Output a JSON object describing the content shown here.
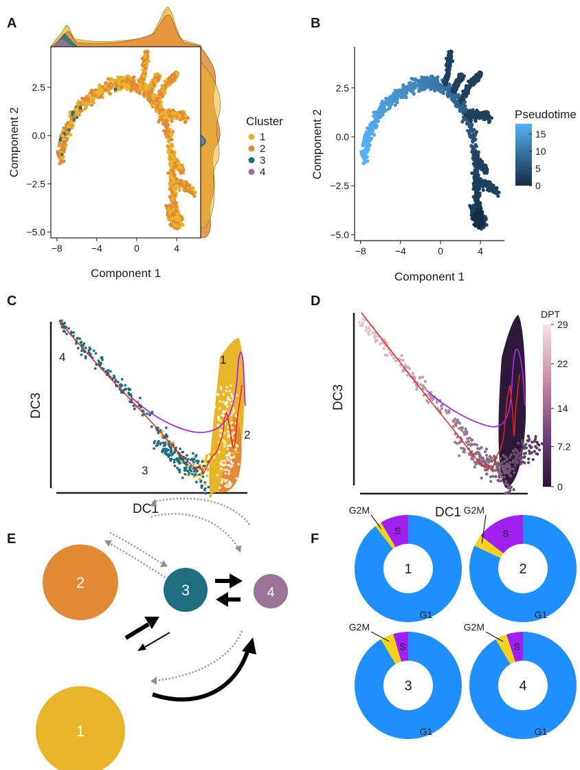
{
  "panels": {
    "A": "A",
    "B": "B",
    "C": "C",
    "D": "D",
    "E": "E",
    "F": "F"
  },
  "colors": {
    "c1": "#E8B52A",
    "c2": "#E38A37",
    "c3": "#1E6E80",
    "c4": "#9B7495",
    "red": "#E8231E",
    "purple": "#A42BE0",
    "g1": "#1F8FFF",
    "s": "#A020F0",
    "g2m": "#F5D31C"
  },
  "chart_data": [
    {
      "panel": "A",
      "type": "scatter",
      "xlabel": "Component 1",
      "ylabel": "Component 2",
      "xticks": [
        -8,
        -4,
        0,
        4
      ],
      "yticks": [
        2.5,
        0.0,
        -2.5,
        -5.0
      ],
      "xtick_labels": [
        "−8",
        "−4",
        "0",
        "4"
      ],
      "ytick_labels": [
        "2.5",
        "0.0",
        "−2.5",
        "−5.0"
      ],
      "xlim": [
        -8.6,
        6.4
      ],
      "ylim": [
        -5.3,
        4.6
      ],
      "legend_title": "Cluster",
      "legend_items": [
        "1",
        "2",
        "3",
        "4"
      ],
      "legend": "right",
      "marginal_density": "top and right"
    },
    {
      "panel": "B",
      "type": "scatter",
      "xlabel": "Component 1",
      "ylabel": "Component 2",
      "xticks": [
        -8,
        -4,
        0,
        4
      ],
      "yticks": [
        2.5,
        0.0,
        -2.5,
        -5.0
      ],
      "xtick_labels": [
        "−8",
        "−4",
        "0",
        "4"
      ],
      "ytick_labels": [
        "2.5",
        "0.0",
        "−2.5",
        "−5.0"
      ],
      "xlim": [
        -8.6,
        6.4
      ],
      "ylim": [
        -5.3,
        4.6
      ],
      "colorbar_title": "Pseudotime",
      "colorbar_ticks": [
        "15",
        "10",
        "5",
        "0"
      ],
      "colorbar_values": [
        15,
        10,
        5,
        0
      ],
      "colorbar_range": [
        0,
        18
      ]
    },
    {
      "panel": "C",
      "type": "scatter",
      "xlabel": "DC1",
      "ylabel": "DC3",
      "cluster_labels": [
        "4",
        "1",
        "3",
        "2"
      ]
    },
    {
      "panel": "D",
      "type": "scatter",
      "xlabel": "DC1",
      "ylabel": "DC3",
      "colorbar_title": "DPT",
      "colorbar_ticks": [
        "29",
        "22",
        "14",
        "7.2",
        "0"
      ],
      "colorbar_values": [
        29,
        22,
        14,
        7.2,
        0
      ],
      "colorbar_range": [
        0,
        29
      ]
    },
    {
      "panel": "E",
      "type": "network",
      "nodes": [
        {
          "id": "1",
          "label": "1",
          "size": "largest"
        },
        {
          "id": "2",
          "label": "2",
          "size": "large"
        },
        {
          "id": "3",
          "label": "3",
          "size": "medium"
        },
        {
          "id": "4",
          "label": "4",
          "size": "small"
        }
      ],
      "edges": [
        {
          "from": "1",
          "to": "2",
          "style": "solid-thick"
        },
        {
          "from": "2",
          "to": "1",
          "style": "solid-thick"
        },
        {
          "from": "1",
          "to": "3",
          "style": "solid-thick"
        },
        {
          "from": "3",
          "to": "1",
          "style": "solid-thin"
        },
        {
          "from": "3",
          "to": "4",
          "style": "solid-thick"
        },
        {
          "from": "4",
          "to": "3",
          "style": "solid-thick"
        },
        {
          "from": "1",
          "to": "4",
          "style": "solid-thick"
        },
        {
          "from": "4",
          "to": "1",
          "style": "dotted"
        },
        {
          "from": "2",
          "to": "3",
          "style": "dotted"
        },
        {
          "from": "3",
          "to": "2",
          "style": "dotted"
        },
        {
          "from": "2",
          "to": "4",
          "style": "dotted"
        },
        {
          "from": "4",
          "to": "2",
          "style": "dotted"
        }
      ]
    },
    {
      "panel": "F",
      "type": "pie",
      "donuts": [
        {
          "center_label": "1",
          "slices": [
            {
              "label": "G1",
              "value": 0.895
            },
            {
              "label": "G2M",
              "value": 0.02
            },
            {
              "label": "S",
              "value": 0.085
            }
          ]
        },
        {
          "center_label": "2",
          "slices": [
            {
              "label": "G1",
              "value": 0.82
            },
            {
              "label": "G2M",
              "value": 0.035
            },
            {
              "label": "S",
              "value": 0.145
            }
          ]
        },
        {
          "center_label": "3",
          "slices": [
            {
              "label": "G1",
              "value": 0.915
            },
            {
              "label": "G2M",
              "value": 0.04
            },
            {
              "label": "S",
              "value": 0.045
            }
          ]
        },
        {
          "center_label": "4",
          "slices": [
            {
              "label": "G1",
              "value": 0.915
            },
            {
              "label": "G2M",
              "value": 0.035
            },
            {
              "label": "S",
              "value": 0.05
            }
          ]
        }
      ]
    }
  ]
}
